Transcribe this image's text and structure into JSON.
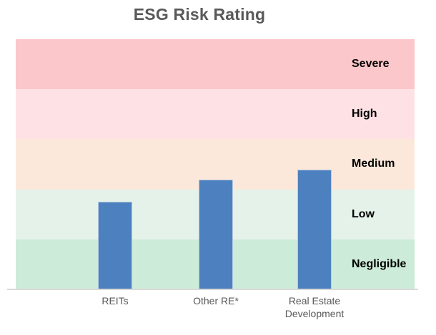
{
  "chart_data": {
    "type": "bar",
    "title": "ESG Risk Rating",
    "xlabel": "",
    "ylabel": "",
    "legend": "none",
    "grid": false,
    "categories": [
      "REITs",
      "Other RE*",
      "Real Estate Development"
    ],
    "values": [
      17.5,
      22,
      24
    ],
    "ylim": [
      0,
      50
    ],
    "bar_color": "#4d80be",
    "bar_border_color": "#b9c9de",
    "title_color": "#595959",
    "category_label_color": "#595959",
    "band_label_color": "#000000",
    "axis_line_color": "#d9d9d9",
    "bands": [
      {
        "label": "Severe",
        "range": [
          40,
          50
        ],
        "color": "#fcc7ca"
      },
      {
        "label": "High",
        "range": [
          30,
          40
        ],
        "color": "#fee1e4"
      },
      {
        "label": "Medium",
        "range": [
          20,
          30
        ],
        "color": "#fce8da"
      },
      {
        "label": "Low",
        "range": [
          10,
          20
        ],
        "color": "#e4f2ea"
      },
      {
        "label": "Negligible",
        "range": [
          0,
          10
        ],
        "color": "#cdebd9"
      }
    ]
  }
}
